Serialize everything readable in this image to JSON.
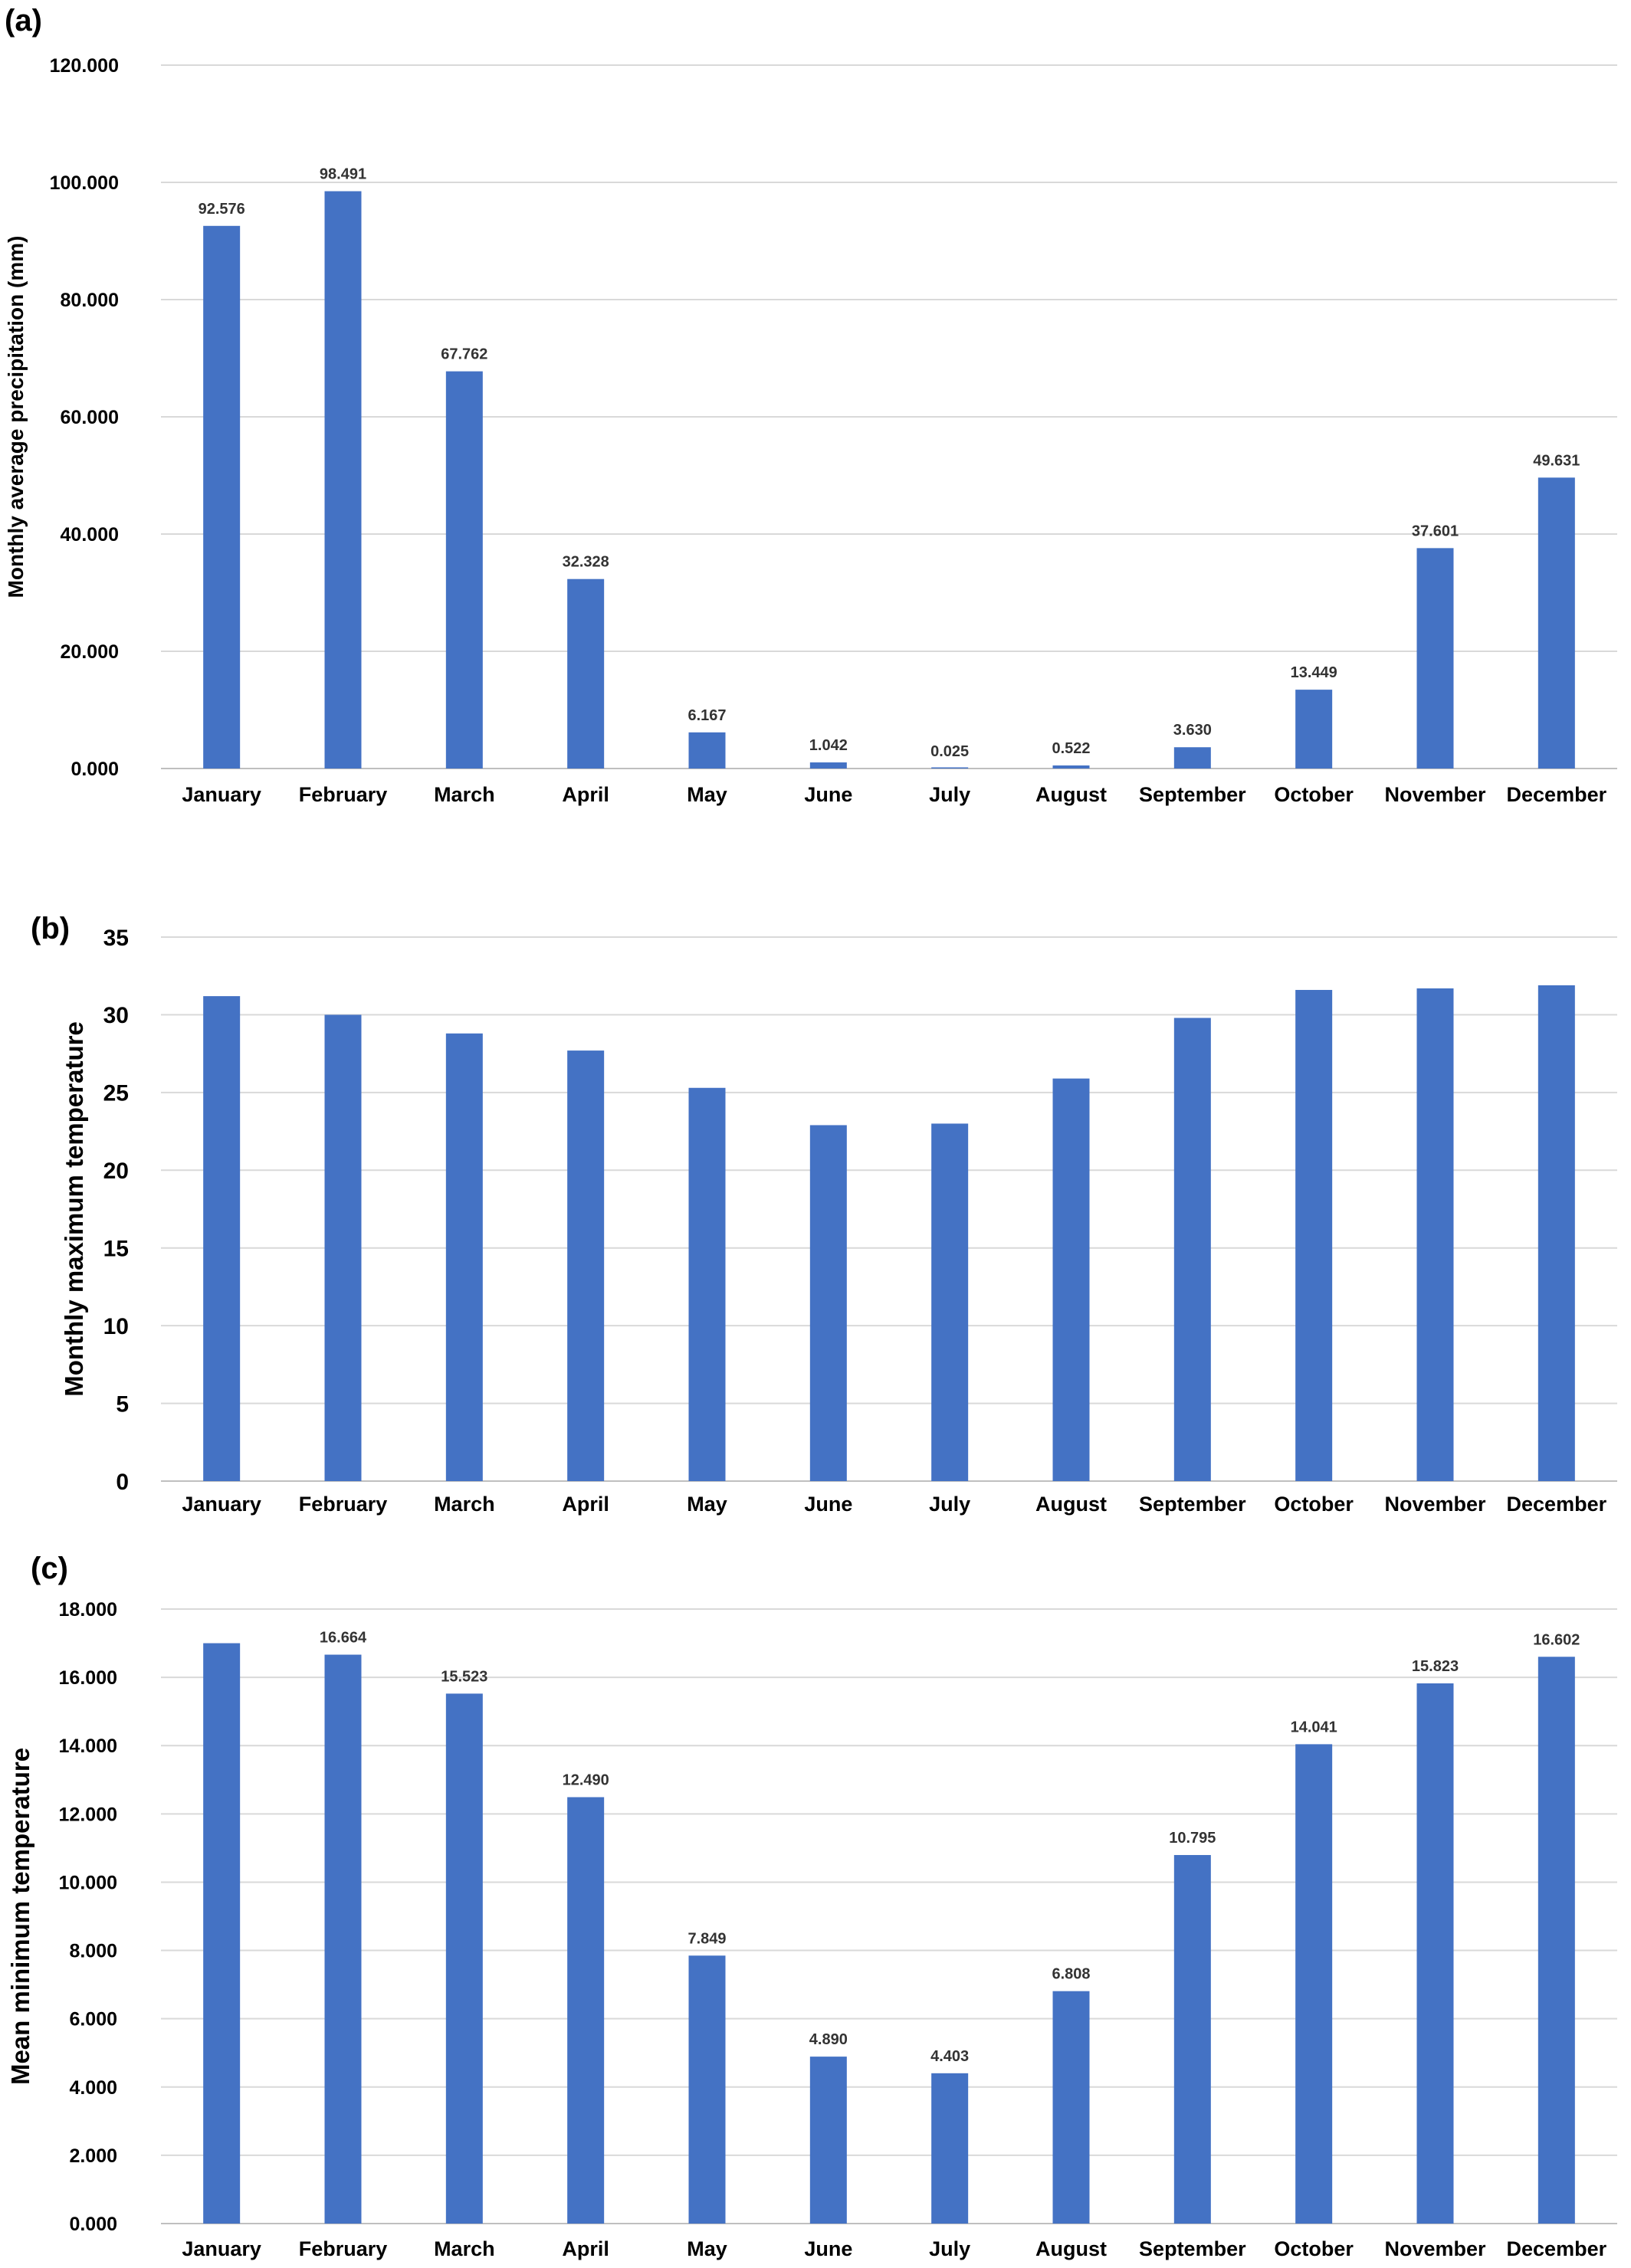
{
  "figure": {
    "panels": [
      "(a)",
      "(b)",
      "(c)"
    ]
  },
  "chart_data": [
    {
      "type": "bar",
      "panel_label": "(a)",
      "ylabel": "Monthly average precipitation (mm)",
      "ylim": [
        0,
        120
      ],
      "yticks": [
        "0.000",
        "20.000",
        "40.000",
        "60.000",
        "80.000",
        "100.000",
        "120.000"
      ],
      "categories": [
        "January",
        "February",
        "March",
        "April",
        "May",
        "June",
        "July",
        "August",
        "September",
        "October",
        "November",
        "December"
      ],
      "values": [
        92.576,
        98.491,
        67.762,
        32.328,
        6.167,
        1.042,
        0.025,
        0.522,
        3.63,
        13.449,
        37.601,
        49.631
      ],
      "data_labels": [
        "92.576",
        "98.491",
        "67.762",
        "32.328",
        "6.167",
        "1.042",
        "0.025",
        "0.522",
        "3.630",
        "13.449",
        "37.601",
        "49.631"
      ],
      "bar_color": "#4472C4",
      "grid": true
    },
    {
      "type": "bar",
      "panel_label": "(b)",
      "ylabel": "Monthly maximum temperature",
      "ylim": [
        0,
        35
      ],
      "yticks": [
        "0",
        "5",
        "10",
        "15",
        "20",
        "25",
        "30",
        "35"
      ],
      "categories": [
        "January",
        "February",
        "March",
        "April",
        "May",
        "June",
        "July",
        "August",
        "September",
        "October",
        "November",
        "December"
      ],
      "values": [
        31.2,
        30.0,
        28.8,
        27.7,
        25.3,
        22.9,
        23.0,
        25.9,
        29.8,
        31.6,
        31.7,
        31.9
      ],
      "data_labels": [],
      "bar_color": "#4472C4",
      "grid": true
    },
    {
      "type": "bar",
      "panel_label": "(c)",
      "ylabel": "Mean minimum temperature",
      "ylim": [
        0,
        18
      ],
      "yticks": [
        "0.000",
        "2.000",
        "4.000",
        "6.000",
        "8.000",
        "10.000",
        "12.000",
        "14.000",
        "16.000",
        "18.000"
      ],
      "categories": [
        "January",
        "February",
        "March",
        "April",
        "May",
        "June",
        "July",
        "August",
        "September",
        "October",
        "November",
        "December"
      ],
      "values": [
        17.0,
        16.664,
        15.523,
        12.49,
        7.849,
        4.89,
        4.403,
        6.808,
        10.795,
        14.041,
        15.823,
        16.602
      ],
      "data_labels": [
        "",
        "16.664",
        "15.523",
        "12.490",
        "7.849",
        "4.890",
        "4.403",
        "6.808",
        "10.795",
        "14.041",
        "15.823",
        "16.602"
      ],
      "bar_color": "#4472C4",
      "grid": true
    }
  ]
}
